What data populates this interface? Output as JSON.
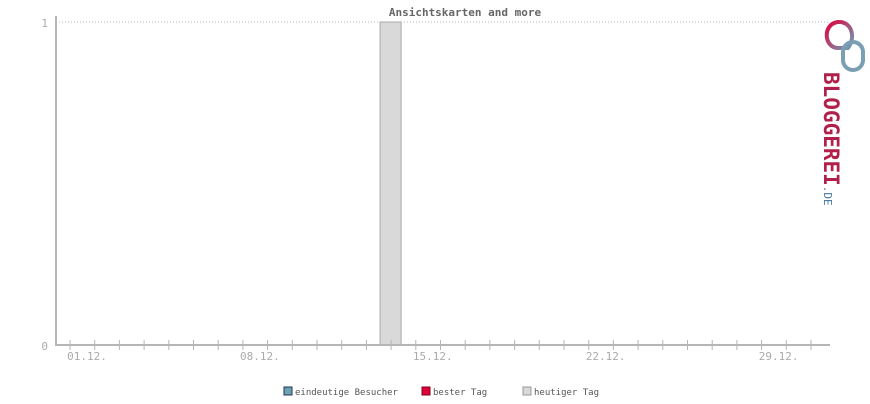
{
  "chart_data": {
    "type": "bar",
    "title": "Ansichtskarten and more",
    "x_tick_labels": [
      "01.12.",
      "08.12.",
      "15.12.",
      "22.12.",
      "29.12."
    ],
    "y_tick_labels": [
      "0",
      "1"
    ],
    "ylim": [
      0,
      1
    ],
    "days": 31,
    "series": [
      {
        "name": "eindeutige Besucher",
        "color": "#6fa0b8",
        "values": []
      },
      {
        "name": "bester Tag",
        "color": "#e0003a",
        "values": []
      },
      {
        "name": "heutiger Tag",
        "color": "#d9d9d9",
        "points": [
          {
            "day": 14,
            "value": 1
          }
        ]
      }
    ],
    "grid": "horizontal dotted at max",
    "legend_placement": "bottom"
  },
  "logo": {
    "text": "BLOGGEREI",
    "suffix": ".DE"
  }
}
